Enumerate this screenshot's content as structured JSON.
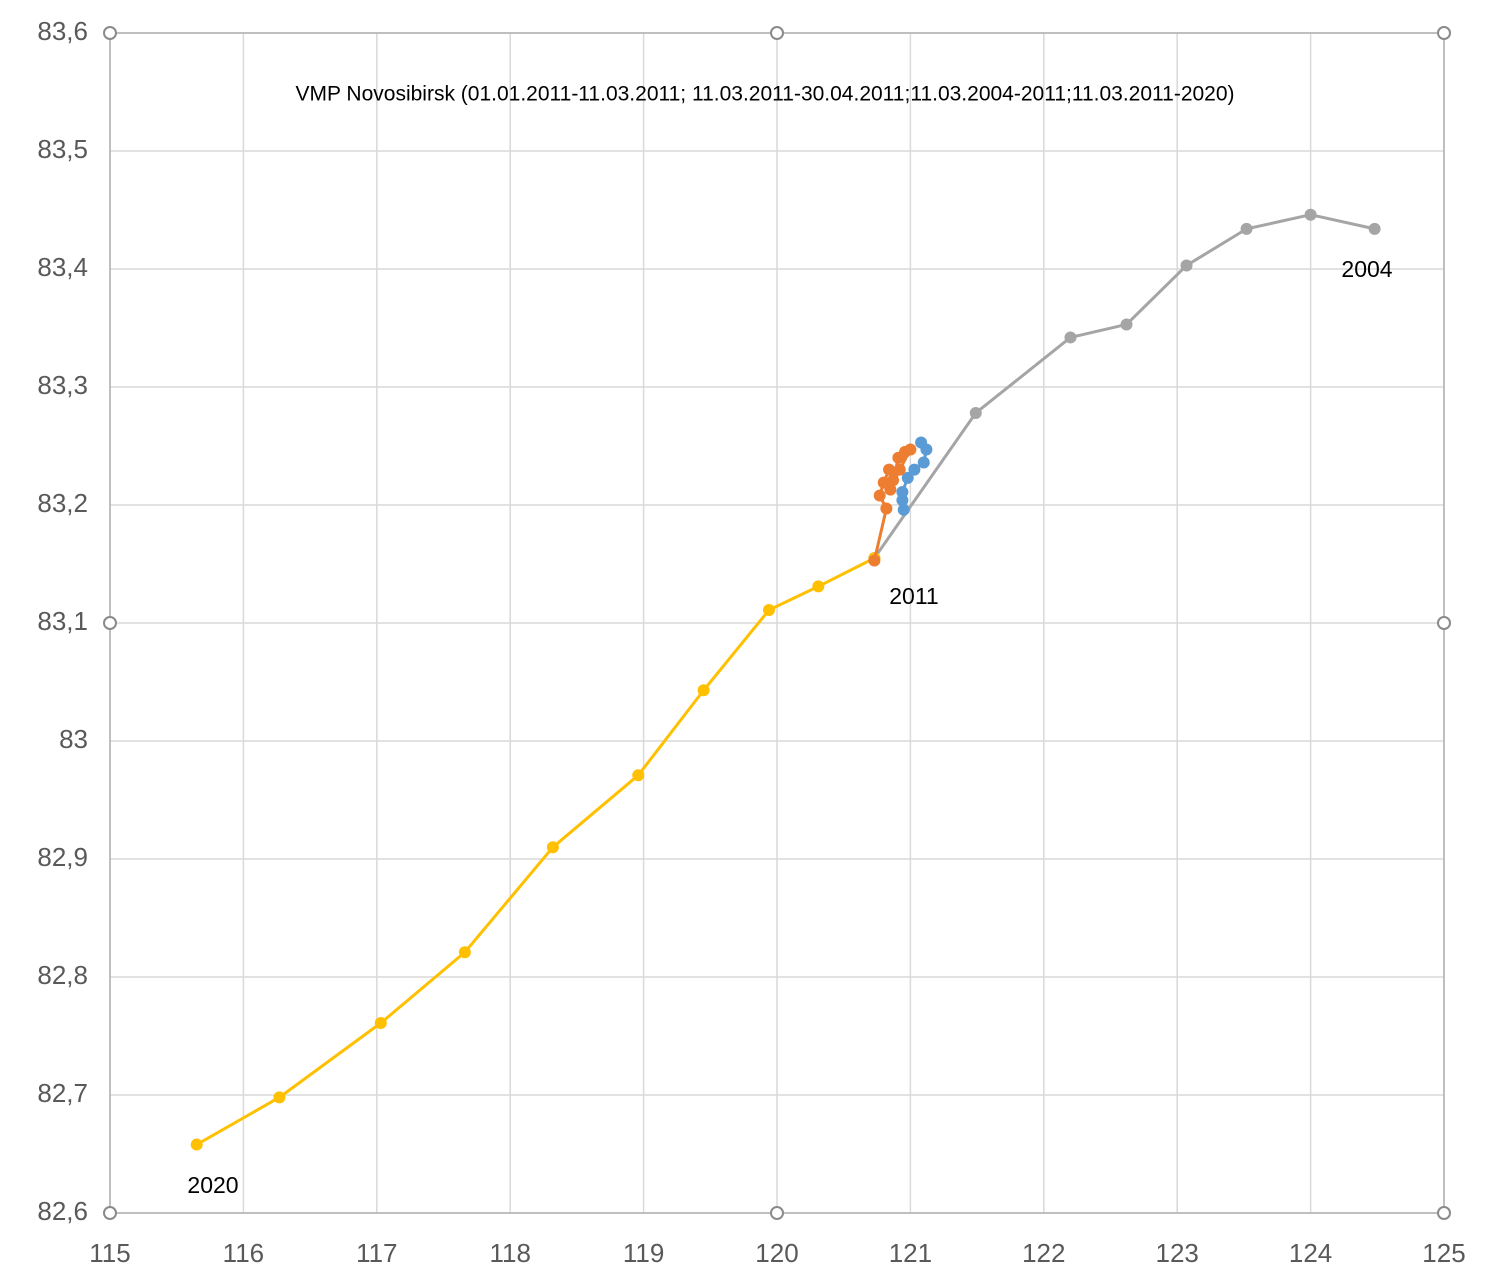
{
  "chart_data": {
    "type": "scatter_line",
    "title": "VMP Novosibirsk (01.01.2011-11.03.2011; 11.03.2011-30.04.2011;11.03.2004-2011;11.03.2011-2020)",
    "xlim": [
      115,
      125
    ],
    "xticks": [
      115,
      116,
      117,
      118,
      119,
      120,
      121,
      122,
      123,
      124,
      125
    ],
    "ylim": [
      82.6,
      83.6
    ],
    "yticks": [
      {
        "value": 82.6,
        "label": "82,6"
      },
      {
        "value": 82.7,
        "label": "82,7"
      },
      {
        "value": 82.8,
        "label": "82,8"
      },
      {
        "value": 82.9,
        "label": "82,9"
      },
      83,
      {
        "value": 83.1,
        "label": "83,1"
      },
      {
        "value": 83.2,
        "label": "83,2"
      },
      {
        "value": 83.3,
        "label": "83,3"
      },
      {
        "value": 83.4,
        "label": "83,4"
      },
      {
        "value": 83.5,
        "label": "83,5"
      },
      {
        "value": 83.6,
        "label": "83,6"
      }
    ],
    "grid": true,
    "annotations": [
      "2004",
      "2011",
      "2020"
    ],
    "series": [
      {
        "color": "#a5a5a5",
        "x": [
          124.48,
          124.0,
          123.52,
          123.07,
          122.62,
          122.2,
          121.49,
          120.73
        ],
        "values": [
          83.434,
          83.446,
          83.434,
          83.403,
          83.353,
          83.342,
          83.278,
          83.155
        ]
      },
      {
        "color": "#ffc000",
        "x": [
          120.73,
          120.31,
          119.94,
          119.45,
          118.96,
          118.32,
          117.66,
          117.03,
          116.27,
          115.65
        ],
        "values": [
          83.155,
          83.131,
          83.111,
          83.043,
          82.971,
          82.91,
          82.821,
          82.761,
          82.698,
          82.658
        ]
      },
      {
        "color": "#5b9bd5",
        "x": [
          121.08,
          121.12,
          121.1,
          121.03,
          120.98,
          120.94,
          120.94,
          120.95
        ],
        "values": [
          83.253,
          83.247,
          83.236,
          83.23,
          83.223,
          83.211,
          83.204,
          83.196
        ]
      },
      {
        "color": "#ed7d31",
        "x": [
          120.73,
          120.82,
          120.77,
          120.8,
          120.84,
          120.87,
          120.91,
          120.96,
          121.0,
          120.92,
          120.85
        ],
        "values": [
          83.153,
          83.197,
          83.208,
          83.219,
          83.23,
          83.221,
          83.24,
          83.245,
          83.247,
          83.23,
          83.213
        ]
      }
    ]
  }
}
